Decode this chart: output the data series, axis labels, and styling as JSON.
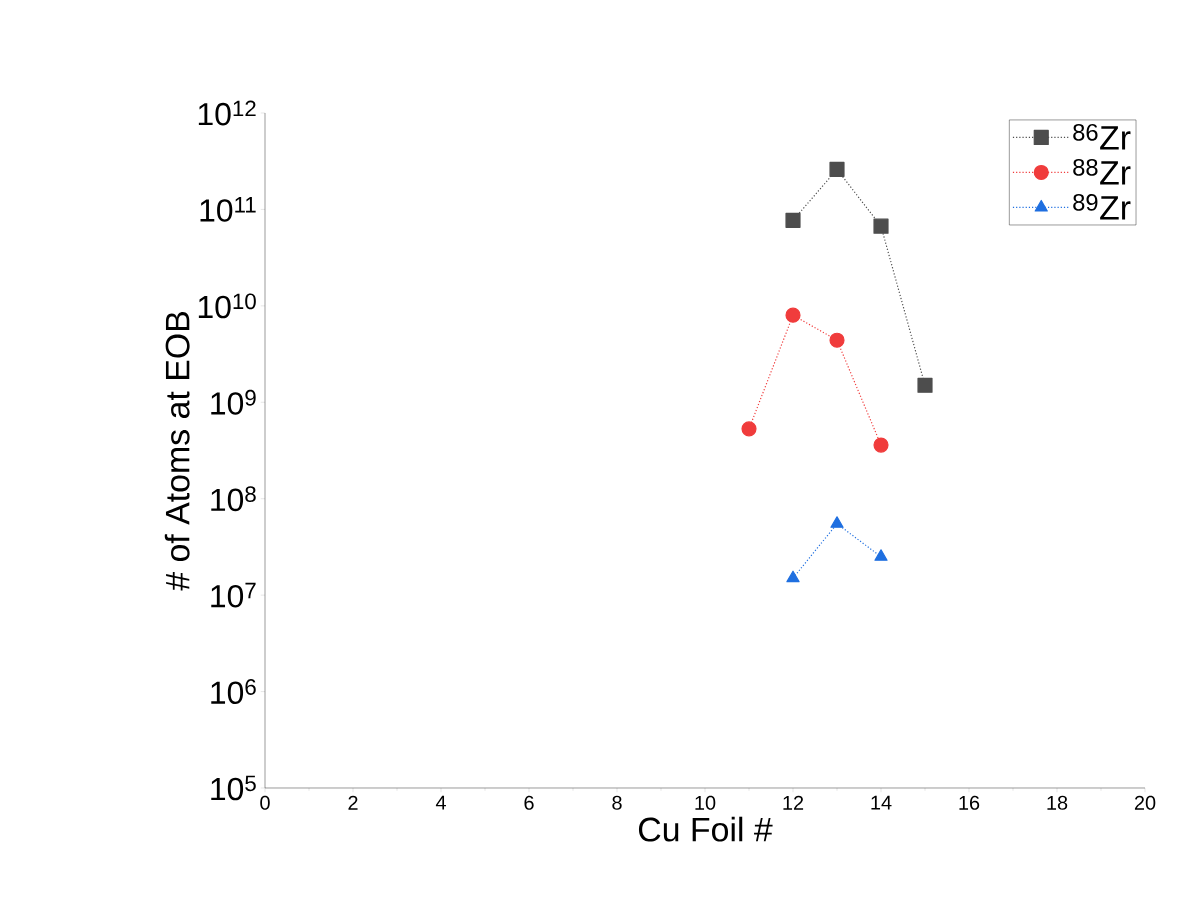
{
  "chart_data": {
    "type": "line",
    "xlabel": "Cu Foil #",
    "ylabel": "# of Atoms at EOB",
    "log": "y",
    "xlim": [
      0,
      20
    ],
    "xticks": [
      0,
      2,
      4,
      6,
      8,
      10,
      12,
      14,
      16,
      18,
      20
    ],
    "ylim": [
      100000,
      1000000000000
    ],
    "yticks": [
      {
        "value": 100000,
        "label": "10$^{5}$"
      },
      {
        "value": 1000000,
        "label": "10$^{6}$"
      },
      {
        "value": 10000000,
        "label": "10$^{7}$"
      },
      {
        "value": 100000000,
        "label": "10$^{8}$"
      },
      {
        "value": 1000000000,
        "label": "10$^{9}$"
      },
      {
        "value": 10000000000,
        "label": "10$^{10}$"
      },
      {
        "value": 100000000000,
        "label": "10$^{11}$"
      },
      {
        "value": 1000000000000,
        "label": "10$^{12}$"
      }
    ],
    "grid": false,
    "legend": "top right",
    "line_style": "dotted",
    "series": [
      {
        "name": "$^{86}$Zr",
        "color": "#4d4d4d",
        "marker": "square",
        "x": [
          12,
          13,
          14,
          15
        ],
        "values": [
          77000000000,
          260000000000,
          67000000000,
          1500000000
        ]
      },
      {
        "name": "$^{88}$Zr",
        "color": "#f03c3c",
        "marker": "circle",
        "x": [
          11,
          12,
          13,
          14
        ],
        "values": [
          530000000,
          8000000000,
          4400000000,
          360000000
        ]
      },
      {
        "name": "$^{89}$Zr",
        "color": "#1f6fe0",
        "marker": "triangle",
        "x": [
          12,
          13,
          14
        ],
        "values": [
          15000000,
          55000000,
          25000000
        ]
      }
    ]
  }
}
